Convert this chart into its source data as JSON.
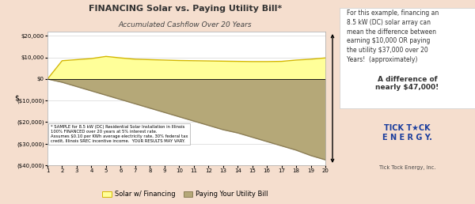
{
  "title": "FINANCING Solar vs. Paying Utility Bill*",
  "subtitle": "Accumulated Cashflow Over 20 Years",
  "ylabel": "$",
  "background_color": "#f5dece",
  "plot_bg_color": "#ffffff",
  "years": [
    1,
    2,
    3,
    4,
    5,
    6,
    7,
    8,
    9,
    10,
    11,
    12,
    13,
    14,
    15,
    16,
    17,
    18,
    19,
    20
  ],
  "solar_values": [
    0,
    8500,
    9000,
    9500,
    10500,
    9800,
    9200,
    9000,
    8800,
    8600,
    8500,
    8400,
    8300,
    8200,
    8100,
    8100,
    8200,
    8800,
    9200,
    9800
  ],
  "utility_values": [
    0,
    -1500,
    -3500,
    -5500,
    -7500,
    -9500,
    -11500,
    -13500,
    -15500,
    -17500,
    -19500,
    -21500,
    -23500,
    -25000,
    -27000,
    -29000,
    -31000,
    -33000,
    -35500,
    -37500
  ],
  "solar_color": "#ffff99",
  "solar_edge_color": "#d4b800",
  "utility_color": "#b5a878",
  "utility_edge_color": "#8b7d55",
  "ylim": [
    -40000,
    22000
  ],
  "yticks": [
    -40000,
    -30000,
    -20000,
    -10000,
    0,
    10000,
    20000
  ],
  "ytick_labels": [
    "($40,000)",
    "($30,000)",
    "($20,000)",
    "($10,000)",
    "$0",
    "$10,000",
    "$20,000"
  ],
  "annotation_text": "* SAMPLE for 8.5 kW (DC) Residential Solar Installation in Illinois\n100% FINANCED over 20 years at 5% interest rate.\nAssumes $0.10 per KWh average electricity rate, 30% federal tax\ncredit, Illinois SREC incentive income.  YOUR RESULTS MAY VARY.",
  "legend_solar": "Solar w/ Financing",
  "legend_utility": "Paying Your Utility Bill",
  "right_text": "For this example, financing an\n8.5 kW (DC) solar array can\nmean the difference between\nearning $10,000 OR paying\nthe utility $37,000 over 20\nYears!  (approximately)",
  "right_bold": "A difference of\nnearly $47,000!",
  "tick_tock_text": "TICK T★CK\nE N E R G Y.",
  "tick_tock_sub": "Tick Tock Energy, Inc."
}
